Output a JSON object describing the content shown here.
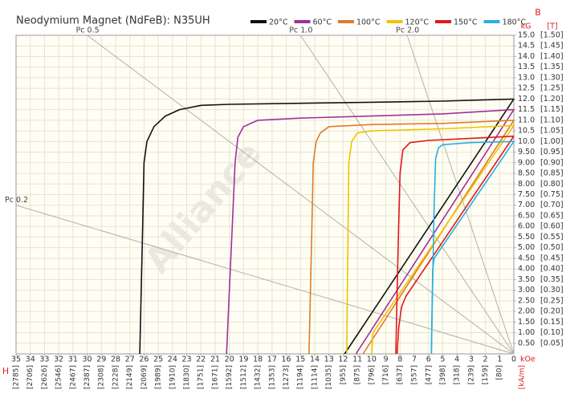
{
  "chart_data": {
    "type": "demagnetization",
    "title": "Neodymium Magnet (NdFeB):  N35UH",
    "watermark": "Alliance",
    "x_label": "H",
    "y_label": "B",
    "x_unit": "kOe",
    "x2_unit": "[kA/m]",
    "y_unit": "kG",
    "y2_unit": "[T]",
    "axis_color": "#e02020",
    "grid": true,
    "xlim": [
      35,
      0
    ],
    "ylim": [
      0,
      15
    ],
    "x2lim": [
      2785,
      0
    ],
    "y2lim": [
      0,
      1.5
    ],
    "xticks": [
      35,
      34,
      33,
      32,
      31,
      30,
      29,
      28,
      27,
      26,
      25,
      24,
      23,
      22,
      21,
      20,
      19,
      18,
      17,
      16,
      15,
      14,
      13,
      12,
      11,
      10,
      9,
      8,
      7,
      6,
      5,
      4,
      3,
      2,
      1,
      0
    ],
    "x2ticks": [
      {
        "value": 2785,
        "label": "[2785]"
      },
      {
        "value": 2706,
        "label": "[2706]"
      },
      {
        "value": 2626,
        "label": "[2626]"
      },
      {
        "value": 2546,
        "label": "[2546]"
      },
      {
        "value": 2467,
        "label": "[2467]"
      },
      {
        "value": 2387,
        "label": "[2387]"
      },
      {
        "value": 2308,
        "label": "[2308]"
      },
      {
        "value": 2228,
        "label": "[2228]"
      },
      {
        "value": 2149,
        "label": "[2149]"
      },
      {
        "value": 2069,
        "label": "[2069]"
      },
      {
        "value": 1989,
        "label": "[1989]"
      },
      {
        "value": 1910,
        "label": "[1910]"
      },
      {
        "value": 1830,
        "label": "[1830]"
      },
      {
        "value": 1751,
        "label": "[1751]"
      },
      {
        "value": 1671,
        "label": "[1671]"
      },
      {
        "value": 1592,
        "label": "[1592]"
      },
      {
        "value": 1512,
        "label": "[1512]"
      },
      {
        "value": 1432,
        "label": "[1432]"
      },
      {
        "value": 1353,
        "label": "[1353]"
      },
      {
        "value": 1273,
        "label": "[1273]"
      },
      {
        "value": 1194,
        "label": "[1194]"
      },
      {
        "value": 1114,
        "label": "[1114]"
      },
      {
        "value": 1035,
        "label": "[1035]"
      },
      {
        "value": 955,
        "label": "[955]"
      },
      {
        "value": 875,
        "label": "[875]"
      },
      {
        "value": 796,
        "label": "[796]"
      },
      {
        "value": 716,
        "label": "[716]"
      },
      {
        "value": 637,
        "label": "[637]"
      },
      {
        "value": 557,
        "label": "[557]"
      },
      {
        "value": 477,
        "label": "[477]"
      },
      {
        "value": 398,
        "label": "[398]"
      },
      {
        "value": 318,
        "label": "[318]"
      },
      {
        "value": 239,
        "label": "[239]"
      },
      {
        "value": 159,
        "label": "[159]"
      },
      {
        "value": 80,
        "label": "[80]"
      }
    ],
    "yticks": [
      {
        "value": 15,
        "label": "15.0"
      },
      {
        "value": 14.5,
        "label": "14.5"
      },
      {
        "value": 14,
        "label": "14.0"
      },
      {
        "value": 13.5,
        "label": "13.5"
      },
      {
        "value": 13,
        "label": "13.0"
      },
      {
        "value": 12.5,
        "label": "12.5"
      },
      {
        "value": 12,
        "label": "12.0"
      },
      {
        "value": 11.5,
        "label": "11.5"
      },
      {
        "value": 11,
        "label": "11.0"
      },
      {
        "value": 10.5,
        "label": "10.5"
      },
      {
        "value": 10,
        "label": "10.0"
      },
      {
        "value": 9.5,
        "label": "9.50"
      },
      {
        "value": 9,
        "label": "9.00"
      },
      {
        "value": 8.5,
        "label": "8.50"
      },
      {
        "value": 8,
        "label": "8.00"
      },
      {
        "value": 7.5,
        "label": "7.50"
      },
      {
        "value": 7,
        "label": "7.00"
      },
      {
        "value": 6.5,
        "label": "6.50"
      },
      {
        "value": 6,
        "label": "6.00"
      },
      {
        "value": 5.5,
        "label": "5.50"
      },
      {
        "value": 5,
        "label": "5.00"
      },
      {
        "value": 4.5,
        "label": "4.50"
      },
      {
        "value": 4,
        "label": "4.00"
      },
      {
        "value": 3.5,
        "label": "3.50"
      },
      {
        "value": 3,
        "label": "3.00"
      },
      {
        "value": 2.5,
        "label": "2.50"
      },
      {
        "value": 2,
        "label": "2.00"
      },
      {
        "value": 1.5,
        "label": "1.50"
      },
      {
        "value": 1,
        "label": "1.00"
      },
      {
        "value": 0.5,
        "label": "0.50"
      }
    ],
    "y2ticks": [
      {
        "value": 1.5,
        "label": "[1.50]"
      },
      {
        "value": 1.45,
        "label": "[1.45]"
      },
      {
        "value": 1.4,
        "label": "[1.40]"
      },
      {
        "value": 1.35,
        "label": "[1.35]"
      },
      {
        "value": 1.3,
        "label": "[1.30]"
      },
      {
        "value": 1.25,
        "label": "[1.25]"
      },
      {
        "value": 1.2,
        "label": "[1.20]"
      },
      {
        "value": 1.15,
        "label": "[1.15]"
      },
      {
        "value": 1.1,
        "label": "[1.10]"
      },
      {
        "value": 1.05,
        "label": "[1.05]"
      },
      {
        "value": 1,
        "label": "[1.00]"
      },
      {
        "value": 0.95,
        "label": "[0.95]"
      },
      {
        "value": 0.9,
        "label": "[0.90]"
      },
      {
        "value": 0.85,
        "label": "[0.85]"
      },
      {
        "value": 0.8,
        "label": "[0.80]"
      },
      {
        "value": 0.75,
        "label": "[0.75]"
      },
      {
        "value": 0.7,
        "label": "[0.70]"
      },
      {
        "value": 0.65,
        "label": "[0.65]"
      },
      {
        "value": 0.6,
        "label": "[0.60]"
      },
      {
        "value": 0.55,
        "label": "[0.55]"
      },
      {
        "value": 0.5,
        "label": "[0.50]"
      },
      {
        "value": 0.45,
        "label": "[0.45]"
      },
      {
        "value": 0.4,
        "label": "[0.40]"
      },
      {
        "value": 0.35,
        "label": "[0.35]"
      },
      {
        "value": 0.3,
        "label": "[0.30]"
      },
      {
        "value": 0.25,
        "label": "[0.25]"
      },
      {
        "value": 0.2,
        "label": "[0.20]"
      },
      {
        "value": 0.15,
        "label": "[0.15]"
      },
      {
        "value": 0.1,
        "label": "[0.10]"
      },
      {
        "value": 0.05,
        "label": "[0.05]"
      }
    ],
    "load_lines": [
      {
        "label": "Pc 0.5",
        "value": 0.5
      },
      {
        "label": "Pc 1.0",
        "value": 1.0
      },
      {
        "label": "Pc 2.0",
        "value": 2.0
      },
      {
        "label": "Pc 0.2",
        "value": 0.2
      }
    ],
    "load_line_color": "#b0b0b0",
    "series": [
      {
        "name": "20°C",
        "color": "#111111",
        "intrinsic": {
          "x": [
            0,
            5,
            10,
            15,
            20,
            22,
            23.5,
            24.5,
            25.3,
            25.8,
            26,
            26.1,
            26.2,
            26.3
          ],
          "values": [
            12.0,
            11.9,
            11.85,
            11.8,
            11.75,
            11.7,
            11.5,
            11.2,
            10.7,
            10.0,
            9.0,
            6,
            3,
            0
          ]
        },
        "normal": {
          "x": [
            0,
            11.9
          ],
          "values": [
            12.0,
            0
          ]
        }
      },
      {
        "name": "60°C",
        "color": "#a0309a",
        "intrinsic": {
          "x": [
            0,
            5,
            10,
            15,
            18,
            19,
            19.4,
            19.6,
            19.8,
            20,
            20.2
          ],
          "values": [
            11.5,
            11.3,
            11.2,
            11.1,
            11.0,
            10.7,
            10.2,
            9,
            6,
            3,
            0
          ]
        },
        "normal": {
          "x": [
            0,
            11.1
          ],
          "values": [
            11.5,
            0
          ]
        }
      },
      {
        "name": "100°C",
        "color": "#e07a2a",
        "intrinsic": {
          "x": [
            0,
            5,
            10,
            13,
            13.6,
            13.9,
            14.1,
            14.2,
            14.3,
            14.4
          ],
          "values": [
            11.0,
            10.85,
            10.8,
            10.7,
            10.4,
            10.0,
            9.0,
            6,
            3,
            0
          ]
        },
        "normal": {
          "x": [
            0,
            10.6
          ],
          "values": [
            11.0,
            0
          ]
        }
      },
      {
        "name": "120°C",
        "color": "#f2c200",
        "intrinsic": {
          "x": [
            0,
            5,
            10,
            11,
            11.4,
            11.6,
            11.65,
            11.7,
            11.75
          ],
          "values": [
            10.75,
            10.6,
            10.5,
            10.4,
            10.0,
            9.0,
            6,
            3,
            0
          ]
        },
        "normal": {
          "x": [
            0,
            9.9,
            10.0
          ],
          "values": [
            10.75,
            1.0,
            0
          ]
        }
      },
      {
        "name": "150°C",
        "color": "#e01818",
        "intrinsic": {
          "x": [
            0,
            3,
            6,
            7.3,
            7.8,
            8.0,
            8.1,
            8.2,
            8.3
          ],
          "values": [
            10.25,
            10.15,
            10.05,
            9.95,
            9.6,
            8.5,
            6,
            3,
            0
          ]
        },
        "normal": {
          "x": [
            0,
            7.6,
            7.9,
            8.1,
            8.2
          ],
          "values": [
            10.25,
            2.7,
            2.2,
            1.2,
            0
          ]
        }
      },
      {
        "name": "180°C",
        "color": "#2aaee0",
        "intrinsic": {
          "x": [
            0,
            3,
            5,
            5.3,
            5.5,
            5.6,
            5.7,
            5.8
          ],
          "values": [
            10.0,
            9.95,
            9.85,
            9.7,
            9.2,
            7,
            3.5,
            0
          ]
        },
        "normal": {
          "x": [
            0,
            5.6,
            5.7,
            5.75,
            5.8
          ],
          "values": [
            10.0,
            4.5,
            4.0,
            2,
            0
          ]
        }
      }
    ]
  }
}
